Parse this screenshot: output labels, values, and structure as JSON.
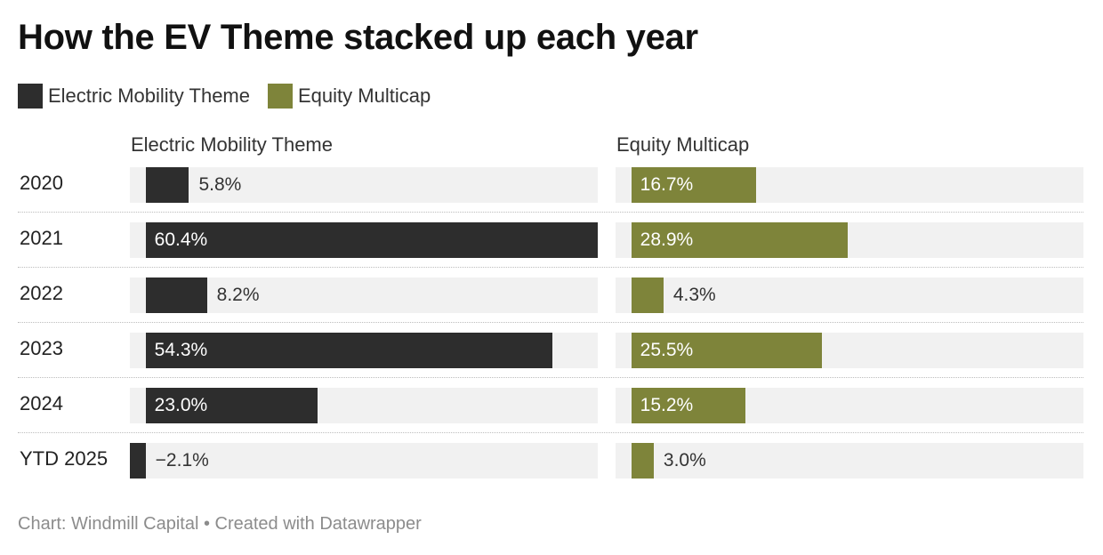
{
  "title": "How the EV Theme stacked up each year",
  "footer": "Chart: Windmill Capital • Created with Datawrapper",
  "chart_data": {
    "type": "bar",
    "orientation": "horizontal",
    "title": "How the EV Theme stacked up each year",
    "categories": [
      "2020",
      "2021",
      "2022",
      "2023",
      "2024",
      "YTD 2025"
    ],
    "xlim": [
      -2.1,
      60.4
    ],
    "legend_placement": "top-left",
    "grid": false,
    "series": [
      {
        "name": "Electric Mobility Theme",
        "color": "#2d2d2d",
        "values": [
          5.8,
          60.4,
          8.2,
          54.3,
          23.0,
          -2.1
        ],
        "labels": [
          "5.8%",
          "60.4%",
          "8.2%",
          "54.3%",
          "23.0%",
          "−2.1%"
        ]
      },
      {
        "name": "Equity Multicap",
        "color": "#7e843a",
        "values": [
          16.7,
          28.9,
          4.3,
          25.5,
          15.2,
          3.0
        ],
        "labels": [
          "16.7%",
          "28.9%",
          "4.3%",
          "25.5%",
          "15.2%",
          "3.0%"
        ]
      }
    ]
  }
}
